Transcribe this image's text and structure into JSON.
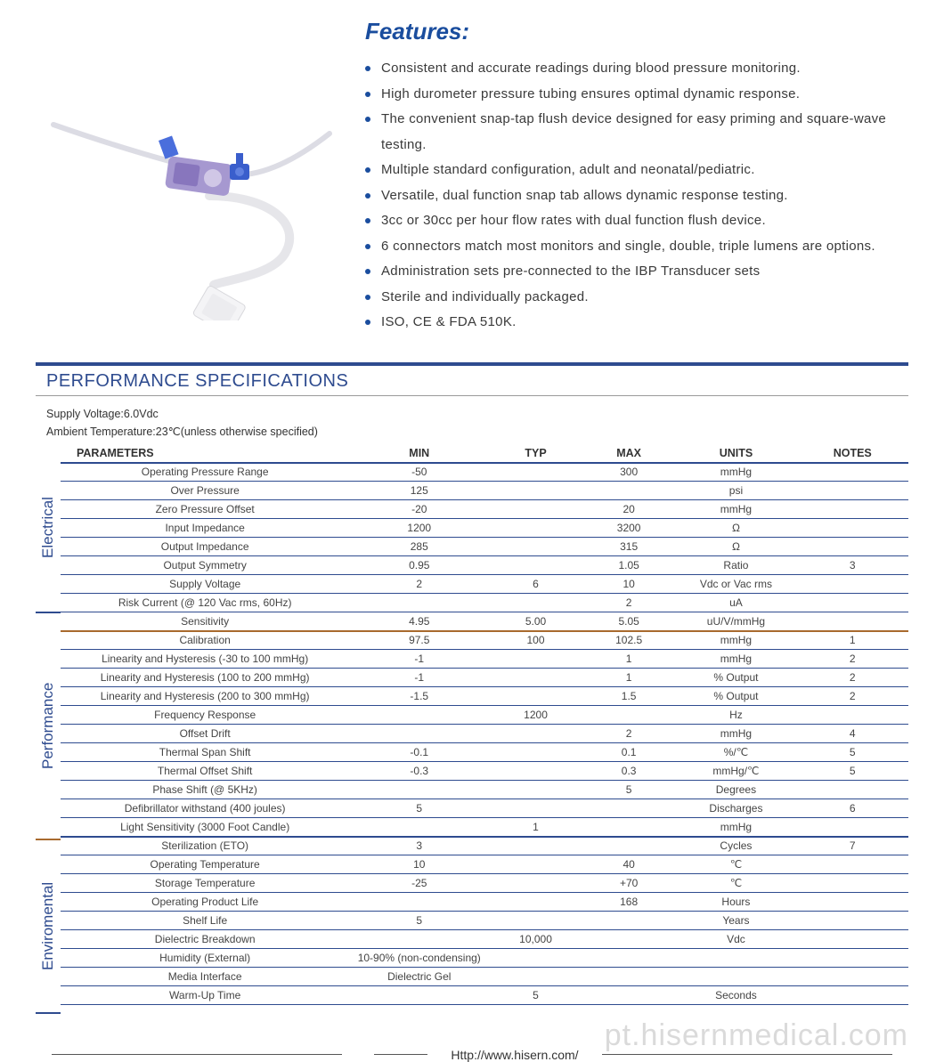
{
  "colors": {
    "brand_blue": "#1a4d9e",
    "rule_blue": "#2e4b8f",
    "section_orange": "#a86a2e",
    "text_dark": "#333333",
    "text_body": "#3a3a3a"
  },
  "product_image": {
    "description": "disposable blood pressure transducer with tubing and connector",
    "tubing_color": "#e8e8ec",
    "device_body_color": "#9a8cc8",
    "stopcock_color": "#3558c8",
    "connector_color": "#f0f0f0"
  },
  "features": {
    "title": "Features:",
    "title_color": "#1a4d9e",
    "title_fontsize": 26,
    "bullet_color": "#1a4d9e",
    "item_fontsize": 15,
    "items": [
      "Consistent and accurate readings during blood pressure monitoring.",
      "High durometer pressure tubing ensures optimal dynamic response.",
      "The convenient snap-tap flush device designed for easy priming and square-wave testing.",
      "Multiple standard configuration, adult and neonatal/pediatric.",
      "Versatile, dual function snap tab allows dynamic response testing.",
      "3cc or 30cc per hour flow rates with dual function flush device.",
      "6 connectors match most monitors and single, double, triple lumens are options.",
      "Administration sets pre-connected to the IBP Transducer sets",
      "Sterile and individually packaged.",
      "ISO, CE & FDA 510K."
    ]
  },
  "specs": {
    "title": "PERFORMANCE SPECIFICATIONS",
    "title_color": "#2e4b8f",
    "title_fontsize": 20,
    "conditions": [
      "Supply Voltage:6.0Vdc",
      "Ambient Temperature:23℃(unless otherwise specified)"
    ],
    "columns": [
      "PARAMETERS",
      "MIN",
      "TYP",
      "MAX",
      "UNITS",
      "NOTES"
    ],
    "side_labels": {
      "electrical": "Electrical",
      "performance": "Performance",
      "environmental": "Enviromental"
    },
    "sections": [
      {
        "name": "electrical",
        "color": "#2e4b8f",
        "rows": [
          {
            "param": "Operating Pressure Range",
            "min": "-50",
            "typ": "",
            "max": "300",
            "units": "mmHg",
            "notes": ""
          },
          {
            "param": "Over  Pressure",
            "min": "125",
            "typ": "",
            "max": "",
            "units": "psi",
            "notes": ""
          },
          {
            "param": "Zero Pressure Offset",
            "min": "-20",
            "typ": "",
            "max": "20",
            "units": "mmHg",
            "notes": ""
          },
          {
            "param": "Input Impedance",
            "min": "1200",
            "typ": "",
            "max": "3200",
            "units": "Ω",
            "notes": ""
          },
          {
            "param": "Output Impedance",
            "min": "285",
            "typ": "",
            "max": "315",
            "units": "Ω",
            "notes": ""
          },
          {
            "param": "Output Symmetry",
            "min": "0.95",
            "typ": "",
            "max": "1.05",
            "units": "Ratio",
            "notes": "3"
          },
          {
            "param": "Supply Voltage",
            "min": "2",
            "typ": "6",
            "max": "10",
            "units": "Vdc or Vac rms",
            "notes": ""
          },
          {
            "param": "Risk Current (@ 120 Vac rms, 60Hz)",
            "min": "",
            "typ": "",
            "max": "2",
            "units": "uA",
            "notes": ""
          },
          {
            "param": "Sensitivity",
            "min": "4.95",
            "typ": "5.00",
            "max": "5.05",
            "units": "uU/V/mmHg",
            "notes": ""
          }
        ]
      },
      {
        "name": "performance",
        "color": "#a86a2e",
        "rows": [
          {
            "param": "Calibration",
            "min": "97.5",
            "typ": "100",
            "max": "102.5",
            "units": "mmHg",
            "notes": "1"
          },
          {
            "param": "Linearity and Hysteresis (-30 to 100 mmHg)",
            "min": "-1",
            "typ": "",
            "max": "1",
            "units": "mmHg",
            "notes": "2"
          },
          {
            "param": "Linearity and Hysteresis (100 to 200 mmHg)",
            "min": "-1",
            "typ": "",
            "max": "1",
            "units": "% Output",
            "notes": "2"
          },
          {
            "param": "Linearity and Hysteresis (200 to 300 mmHg)",
            "min": "-1.5",
            "typ": "",
            "max": "1.5",
            "units": "% Output",
            "notes": "2"
          },
          {
            "param": "Frequency Response",
            "min": "",
            "typ": "1200",
            "max": "",
            "units": "Hz",
            "notes": ""
          },
          {
            "param": "Offset Drift",
            "min": "",
            "typ": "",
            "max": "2",
            "units": "mmHg",
            "notes": "4"
          },
          {
            "param": "Thermal Span Shift",
            "min": "-0.1",
            "typ": "",
            "max": "0.1",
            "units": "%/℃",
            "notes": "5"
          },
          {
            "param": "Thermal Offset Shift",
            "min": "-0.3",
            "typ": "",
            "max": "0.3",
            "units": "mmHg/℃",
            "notes": "5"
          },
          {
            "param": "Phase Shift (@ 5KHz)",
            "min": "",
            "typ": "",
            "max": "5",
            "units": "Degrees",
            "notes": ""
          },
          {
            "param": "Defibrillator withstand (400 joules)",
            "min": "5",
            "typ": "",
            "max": "",
            "units": "Discharges",
            "notes": "6"
          },
          {
            "param": "Light Sensitivity (3000 Foot Candle)",
            "min": "",
            "typ": "1",
            "max": "",
            "units": "mmHg",
            "notes": ""
          }
        ]
      },
      {
        "name": "environmental",
        "color": "#2e4b8f",
        "rows": [
          {
            "param": "Sterilization (ETO)",
            "min": "3",
            "typ": "",
            "max": "",
            "units": "Cycles",
            "notes": "7"
          },
          {
            "param": "Operating Temperature",
            "min": "10",
            "typ": "",
            "max": "40",
            "units": "℃",
            "notes": ""
          },
          {
            "param": "Storage Temperature",
            "min": "-25",
            "typ": "",
            "max": "+70",
            "units": "℃",
            "notes": ""
          },
          {
            "param": "Operating Product Life",
            "min": "",
            "typ": "",
            "max": "168",
            "units": "Hours",
            "notes": ""
          },
          {
            "param": "Shelf Life",
            "min": "5",
            "typ": "",
            "max": "",
            "units": "Years",
            "notes": ""
          },
          {
            "param": "Dielectric Breakdown",
            "min": "",
            "typ": "10,000",
            "max": "",
            "units": "Vdc",
            "notes": ""
          },
          {
            "param": "Humidity (External)",
            "min": "10-90% (non-condensing)",
            "typ": "",
            "max": "",
            "units": "",
            "notes": ""
          },
          {
            "param": "Media Interface",
            "min": "Dielectric Gel",
            "typ": "",
            "max": "",
            "units": "",
            "notes": ""
          },
          {
            "param": "Warm-Up Time",
            "min": "",
            "typ": "5",
            "max": "",
            "units": "Seconds",
            "notes": ""
          }
        ]
      }
    ]
  },
  "footer": {
    "url": "Http://www.hisern.com/"
  },
  "watermark": "pt.hisernmedical.com"
}
